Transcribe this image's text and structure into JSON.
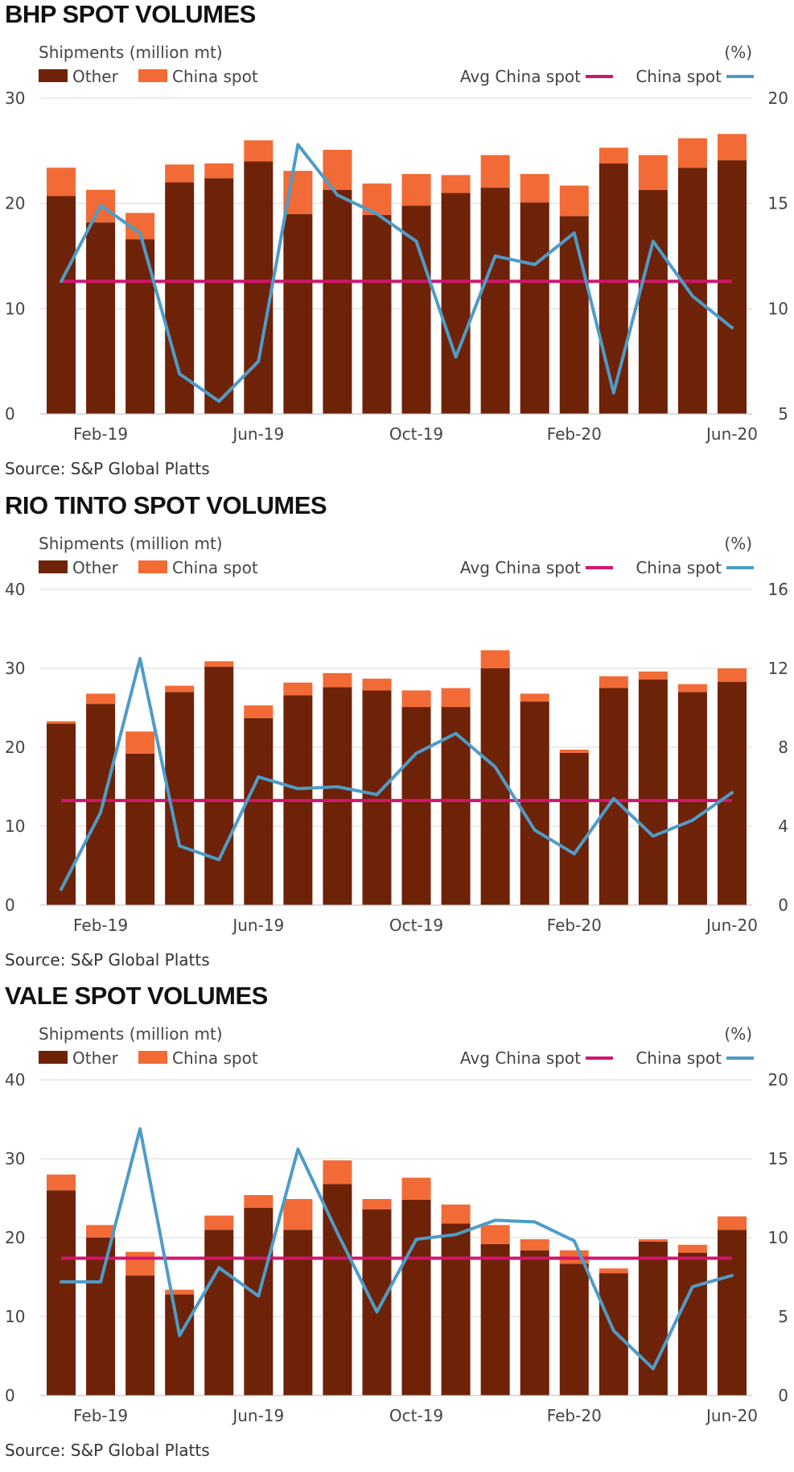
{
  "chart_data": [
    {
      "type": "bar",
      "title": "BHP SPOT VOLUMES",
      "ylabel": "Shipments (million mt)",
      "y2label": "(%)",
      "source": "Source: S&P Global Platts",
      "ylim": [
        0,
        30
      ],
      "y2lim": [
        5,
        20
      ],
      "yticks": [
        "0",
        "10",
        "20",
        "30"
      ],
      "y2ticks": [
        "5",
        "10",
        "15",
        "20"
      ],
      "xtick_labels": [
        "Feb-19",
        "Jun-19",
        "Oct-19",
        "Feb-20",
        "Jun-20"
      ],
      "xtick_index": [
        1,
        5,
        9,
        13,
        17
      ],
      "months": [
        "Jan-19",
        "Feb-19",
        "Mar-19",
        "Apr-19",
        "May-19",
        "Jun-19",
        "Jul-19",
        "Aug-19",
        "Sep-19",
        "Oct-19",
        "Nov-19",
        "Dec-19",
        "Jan-20",
        "Feb-20",
        "Mar-20",
        "Apr-20",
        "May-20",
        "Jun-20"
      ],
      "legend": {
        "other": "Other",
        "china_spot": "China spot",
        "avg": "Avg China spot",
        "line": "China spot"
      },
      "series": [
        {
          "name": "Other",
          "values": [
            20.7,
            18.2,
            16.6,
            22.0,
            22.4,
            24.0,
            19.0,
            21.3,
            18.9,
            19.8,
            21.0,
            21.5,
            20.1,
            18.8,
            23.8,
            21.3,
            23.4,
            24.1
          ]
        },
        {
          "name": "China spot",
          "values": [
            2.7,
            3.1,
            2.5,
            1.7,
            1.4,
            2.0,
            4.1,
            3.8,
            3.0,
            3.0,
            1.7,
            3.1,
            2.7,
            2.9,
            1.5,
            3.3,
            2.8,
            2.5
          ]
        },
        {
          "name": "Avg China spot",
          "values": [
            11.3
          ]
        },
        {
          "name": "China spot",
          "values": [
            11.3,
            14.9,
            13.6,
            6.9,
            5.6,
            7.5,
            17.8,
            15.4,
            14.5,
            13.2,
            7.7,
            12.5,
            12.1,
            13.6,
            6.0,
            13.2,
            10.6,
            9.1
          ]
        }
      ]
    },
    {
      "type": "bar",
      "title": "RIO TINTO SPOT VOLUMES",
      "ylabel": "Shipments (million mt)",
      "y2label": "(%)",
      "source": "Source: S&P Global Platts",
      "ylim": [
        0,
        40
      ],
      "y2lim": [
        0,
        16
      ],
      "yticks": [
        "0",
        "10",
        "20",
        "30",
        "40"
      ],
      "y2ticks": [
        "0",
        "4",
        "8",
        "12",
        "16"
      ],
      "xtick_labels": [
        "Feb-19",
        "Jun-19",
        "Oct-19",
        "Feb-20",
        "Jun-20"
      ],
      "xtick_index": [
        1,
        5,
        9,
        13,
        17
      ],
      "months": [
        "Jan-19",
        "Feb-19",
        "Mar-19",
        "Apr-19",
        "May-19",
        "Jun-19",
        "Jul-19",
        "Aug-19",
        "Sep-19",
        "Oct-19",
        "Nov-19",
        "Dec-19",
        "Jan-20",
        "Feb-20",
        "Mar-20",
        "Apr-20",
        "May-20",
        "Jun-20"
      ],
      "legend": {
        "other": "Other",
        "china_spot": "China spot",
        "avg": "Avg China spot",
        "line": "China spot"
      },
      "series": [
        {
          "name": "Other",
          "values": [
            23.0,
            25.5,
            19.2,
            27.0,
            30.2,
            23.7,
            26.6,
            27.6,
            27.2,
            25.1,
            25.1,
            30.0,
            25.8,
            19.3,
            27.5,
            28.6,
            27.0,
            28.3
          ]
        },
        {
          "name": "China spot",
          "values": [
            0.3,
            1.3,
            2.8,
            0.8,
            0.7,
            1.6,
            1.6,
            1.8,
            1.5,
            2.1,
            2.4,
            2.3,
            1.0,
            0.4,
            1.5,
            1.0,
            1.0,
            1.7
          ]
        },
        {
          "name": "Avg China spot",
          "values": [
            5.3
          ]
        },
        {
          "name": "China spot",
          "values": [
            0.8,
            4.7,
            12.5,
            3.0,
            2.3,
            6.5,
            5.9,
            6.0,
            5.6,
            7.7,
            8.7,
            7.0,
            3.8,
            2.6,
            5.4,
            3.5,
            4.3,
            5.7
          ]
        }
      ]
    },
    {
      "type": "bar",
      "title": "VALE SPOT VOLUMES",
      "ylabel": "Shipments (million mt)",
      "y2label": "(%)",
      "source": "Source: S&P Global Platts",
      "ylim": [
        0,
        40
      ],
      "y2lim": [
        0,
        20
      ],
      "yticks": [
        "0",
        "10",
        "20",
        "30",
        "40"
      ],
      "y2ticks": [
        "0",
        "5",
        "10",
        "15",
        "20"
      ],
      "xtick_labels": [
        "Feb-19",
        "Jun-19",
        "Oct-19",
        "Feb-20",
        "Jun-20"
      ],
      "xtick_index": [
        1,
        5,
        9,
        13,
        17
      ],
      "months": [
        "Jan-19",
        "Feb-19",
        "Mar-19",
        "Apr-19",
        "May-19",
        "Jun-19",
        "Jul-19",
        "Aug-19",
        "Sep-19",
        "Oct-19",
        "Nov-19",
        "Dec-19",
        "Jan-20",
        "Feb-20",
        "Mar-20",
        "Apr-20",
        "May-20",
        "Jun-20"
      ],
      "legend": {
        "other": "Other",
        "china_spot": "China spot",
        "avg": "Avg China spot",
        "line": "China spot"
      },
      "series": [
        {
          "name": "Other",
          "values": [
            26.0,
            20.0,
            15.2,
            12.8,
            21.0,
            23.8,
            21.0,
            26.8,
            23.6,
            24.8,
            21.8,
            19.2,
            18.4,
            16.7,
            15.5,
            19.5,
            18.1,
            21.0
          ]
        },
        {
          "name": "China spot",
          "values": [
            2.0,
            1.6,
            3.0,
            0.6,
            1.8,
            1.6,
            3.9,
            3.0,
            1.3,
            2.8,
            2.4,
            2.4,
            1.4,
            1.7,
            0.6,
            0.3,
            1.0,
            1.7
          ]
        },
        {
          "name": "Avg China spot",
          "values": [
            8.7
          ]
        },
        {
          "name": "China spot",
          "values": [
            7.2,
            7.2,
            16.9,
            3.8,
            8.1,
            6.3,
            15.6,
            10.3,
            5.3,
            9.9,
            10.2,
            11.1,
            11.0,
            9.8,
            4.1,
            1.7,
            6.9,
            7.6
          ]
        }
      ]
    }
  ]
}
